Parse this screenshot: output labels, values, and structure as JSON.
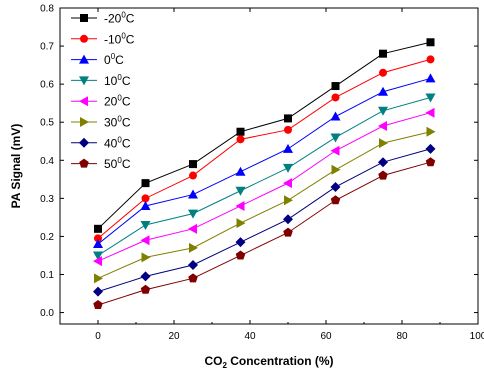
{
  "chart_data": {
    "type": "line",
    "xlabel": "CO2 Concentration (%)",
    "xlabel_parts": {
      "pre": "CO",
      "sub": "2",
      "post": " Concentration (%)"
    },
    "ylabel": "PA Signal (mV)",
    "xlim": [
      -10,
      100
    ],
    "ylim": [
      -0.03,
      0.8
    ],
    "x_ticks": [
      0,
      20,
      40,
      60,
      80,
      100
    ],
    "y_ticks": [
      0.0,
      0.1,
      0.2,
      0.3,
      0.4,
      0.5,
      0.6,
      0.7,
      0.8
    ],
    "x_tick_labels": [
      "0",
      "20",
      "40",
      "60",
      "80",
      "100"
    ],
    "y_tick_labels": [
      "0.0",
      "0.1",
      "0.2",
      "0.3",
      "0.4",
      "0.5",
      "0.6",
      "0.7",
      "0.8"
    ],
    "grid": false,
    "legend_position": "top-left",
    "x": [
      0,
      12.5,
      25,
      37.5,
      50,
      62.5,
      75,
      87.5
    ],
    "series": [
      {
        "name": "-20°C",
        "name_parts": {
          "pre": "-20",
          "sup": "0",
          "post": "C"
        },
        "color": "#000000",
        "marker": "square",
        "values": [
          0.22,
          0.34,
          0.39,
          0.475,
          0.51,
          0.595,
          0.68,
          0.71
        ]
      },
      {
        "name": "-10°C",
        "name_parts": {
          "pre": "-10",
          "sup": "0",
          "post": "C"
        },
        "color": "#ff0000",
        "marker": "circle",
        "values": [
          0.195,
          0.3,
          0.36,
          0.455,
          0.48,
          0.565,
          0.63,
          0.665
        ]
      },
      {
        "name": "0°C",
        "name_parts": {
          "pre": "  0",
          "sup": "0",
          "post": "C"
        },
        "color": "#0000ff",
        "marker": "triangle-up",
        "values": [
          0.18,
          0.28,
          0.31,
          0.37,
          0.43,
          0.515,
          0.58,
          0.615
        ]
      },
      {
        "name": "10°C",
        "name_parts": {
          "pre": "10",
          "sup": "0",
          "post": "C"
        },
        "color": "#008080",
        "marker": "triangle-down",
        "values": [
          0.15,
          0.23,
          0.26,
          0.32,
          0.38,
          0.46,
          0.53,
          0.565
        ]
      },
      {
        "name": "20°C",
        "name_parts": {
          "pre": "20",
          "sup": "0",
          "post": "C"
        },
        "color": "#ff00ff",
        "marker": "triangle-left",
        "values": [
          0.135,
          0.19,
          0.22,
          0.28,
          0.34,
          0.425,
          0.49,
          0.525
        ]
      },
      {
        "name": "30°C",
        "name_parts": {
          "pre": "30",
          "sup": "0",
          "post": "C"
        },
        "color": "#808000",
        "marker": "triangle-right",
        "values": [
          0.09,
          0.145,
          0.17,
          0.235,
          0.295,
          0.375,
          0.445,
          0.475
        ]
      },
      {
        "name": "40°C",
        "name_parts": {
          "pre": "40",
          "sup": "0",
          "post": "C"
        },
        "color": "#000080",
        "marker": "diamond",
        "values": [
          0.055,
          0.095,
          0.125,
          0.185,
          0.245,
          0.33,
          0.395,
          0.43
        ]
      },
      {
        "name": "50°C",
        "name_parts": {
          "pre": "50",
          "sup": "0",
          "post": "C"
        },
        "color": "#800000",
        "marker": "pentagon",
        "values": [
          0.02,
          0.06,
          0.09,
          0.15,
          0.21,
          0.295,
          0.36,
          0.395
        ]
      }
    ]
  }
}
